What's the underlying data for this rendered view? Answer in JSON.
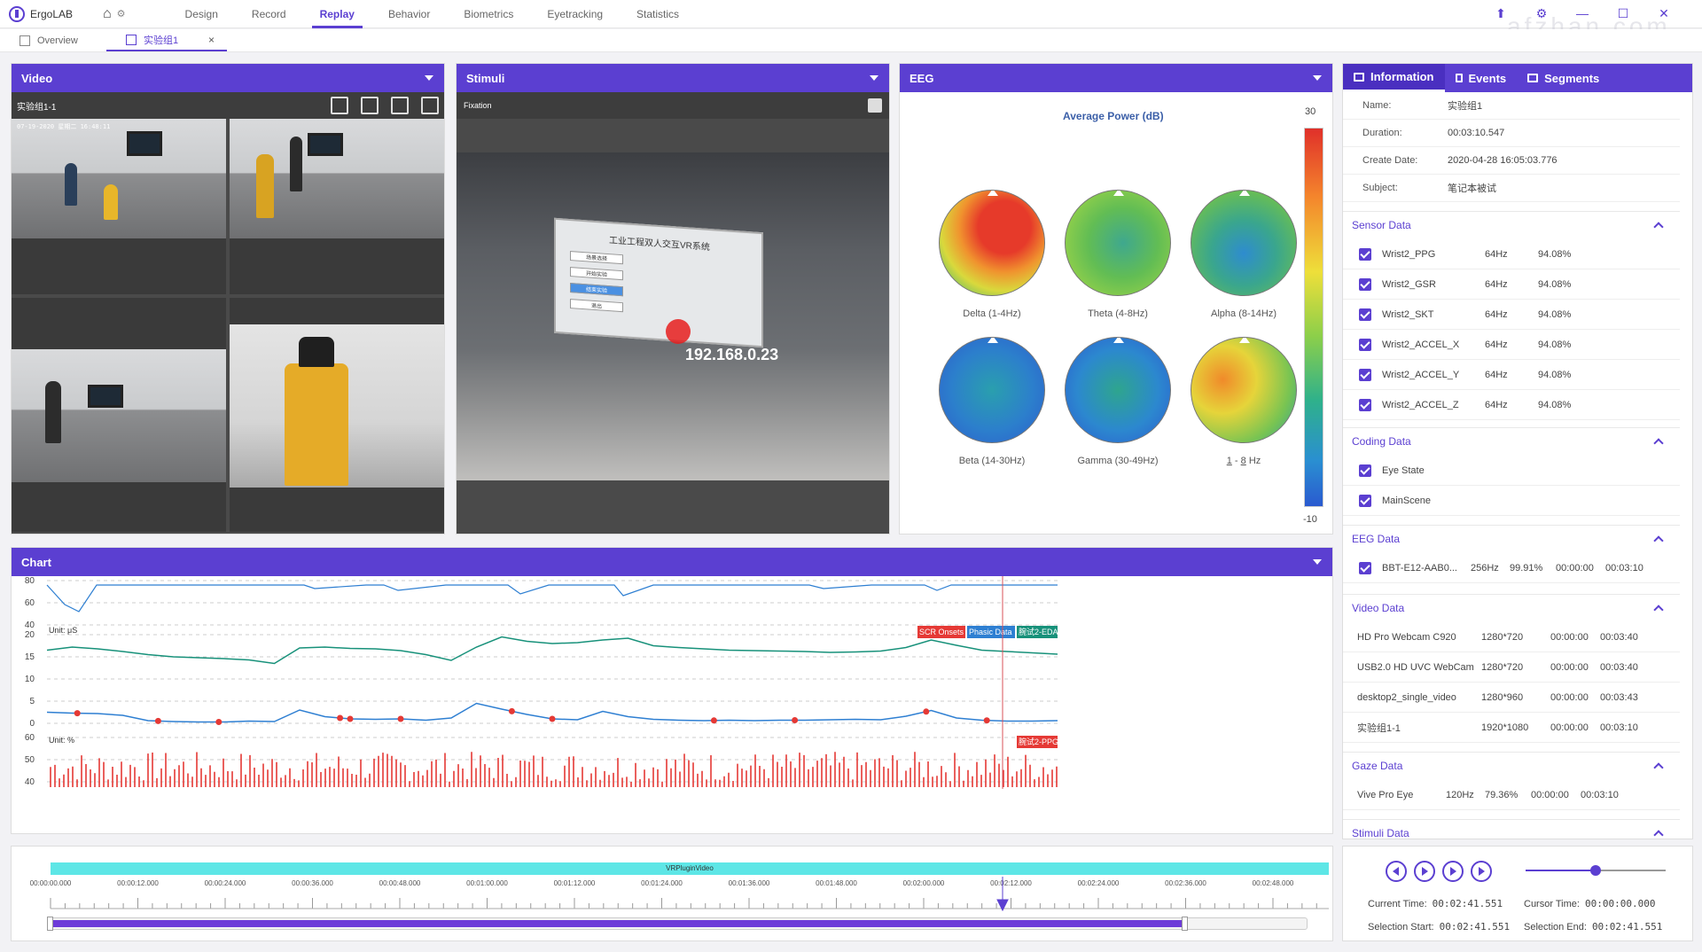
{
  "app": {
    "name": "ErgoLAB"
  },
  "nav": {
    "items": [
      "Design",
      "Record",
      "Replay",
      "Behavior",
      "Biometrics",
      "Eyetracking",
      "Statistics"
    ],
    "active": "Replay"
  },
  "doc_tabs": [
    {
      "label": "Overview"
    },
    {
      "label": "实验组1",
      "close": "×"
    }
  ],
  "video": {
    "title": "Video",
    "label": "实验组1-1",
    "timestamp": "07-19-2020 星期二 16:48:11"
  },
  "stimuli": {
    "title": "Stimuli",
    "label": "Fixation",
    "board_title": "工业工程双人交互VR系统",
    "ip": "192.168.0.23",
    "buttons": [
      "场景选择",
      "开始实验",
      "结束实验",
      "退出"
    ]
  },
  "eeg": {
    "title": "EEG",
    "chart_title": "Average Power (dB)",
    "bands": [
      "Delta (1-4Hz)",
      "Theta (4-8Hz)",
      "Alpha (8-14Hz)",
      "Beta (14-30Hz)",
      "Gamma (30-49Hz)"
    ],
    "custom_band": {
      "low": "1",
      "high": "8",
      "unit": "Hz"
    },
    "scale": {
      "max": "30",
      "min": "-10"
    },
    "colors": {
      "high": "#e0302a",
      "mid": "#eedf3a",
      "low": "#2a5ad0"
    }
  },
  "info": {
    "tabs": [
      "Information",
      "Events",
      "Segments"
    ],
    "fields": [
      {
        "key": "Name:",
        "value": "实验组1"
      },
      {
        "key": "Duration:",
        "value": "00:03:10.547"
      },
      {
        "key": "Create Date:",
        "value": "2020-04-28 16:05:03.776"
      },
      {
        "key": "Subject:",
        "value": "笔记本被试"
      }
    ],
    "sensor_title": "Sensor Data",
    "sensors": [
      {
        "name": "Wrist2_PPG",
        "rate": "64Hz",
        "pct": "94.08%"
      },
      {
        "name": "Wrist2_GSR",
        "rate": "64Hz",
        "pct": "94.08%"
      },
      {
        "name": "Wrist2_SKT",
        "rate": "64Hz",
        "pct": "94.08%"
      },
      {
        "name": "Wrist2_ACCEL_X",
        "rate": "64Hz",
        "pct": "94.08%"
      },
      {
        "name": "Wrist2_ACCEL_Y",
        "rate": "64Hz",
        "pct": "94.08%"
      },
      {
        "name": "Wrist2_ACCEL_Z",
        "rate": "64Hz",
        "pct": "94.08%"
      }
    ],
    "coding_title": "Coding Data",
    "coding": [
      "Eye State",
      "MainScene"
    ],
    "eeg_title": "EEG Data",
    "eeg_rows": [
      {
        "name": "BBT-E12-AAB0...",
        "rate": "256Hz",
        "pct": "99.91%",
        "start": "00:00:00",
        "end": "00:03:10"
      }
    ],
    "video_title": "Video Data",
    "videos": [
      {
        "name": "HD Pro Webcam C920",
        "res": "1280*720",
        "start": "00:00:00",
        "end": "00:03:40"
      },
      {
        "name": "USB2.0 HD UVC WebCam",
        "res": "1280*720",
        "start": "00:00:00",
        "end": "00:03:40"
      },
      {
        "name": "desktop2_single_video",
        "res": "1280*960",
        "start": "00:00:00",
        "end": "00:03:43"
      },
      {
        "name": "实验组1-1",
        "res": "1920*1080",
        "start": "00:00:00",
        "end": "00:03:10"
      }
    ],
    "gaze_title": "Gaze Data",
    "gaze": [
      {
        "name": "Vive Pro Eye",
        "rate": "120Hz",
        "pct": "79.36%",
        "start": "00:00:00",
        "end": "00:03:10"
      }
    ],
    "stimuli_title": "Stimuli Data"
  },
  "chart": {
    "title": "Chart",
    "legend": [
      "SCR Onsets",
      "Phasic Data",
      "腕试2-EDA"
    ],
    "ppg_legend": "腕试2-PPG",
    "unit_eda": "Unit: μS",
    "unit_ppg": "Unit: %",
    "colors": {
      "scr": "#e53935",
      "phasic": "#2e7fd2",
      "eda": "#17917a",
      "ppg": "#e53935",
      "top": "#2e7fd2"
    }
  },
  "chart_data": {
    "type": "line",
    "top_ticks": [
      "80",
      "60",
      "40"
    ],
    "eda_ticks": [
      "20",
      "15",
      "10",
      "5",
      "0"
    ],
    "ppg_ticks": [
      "60",
      "50",
      "40"
    ],
    "eda": {
      "ylim": [
        0,
        20
      ],
      "values": [
        16.5,
        17.2,
        16.8,
        16.2,
        15.5,
        15.0,
        14.8,
        14.6,
        14.3,
        13.5,
        17.0,
        17.2,
        16.9,
        16.8,
        16.4,
        15.5,
        14.2,
        17.2,
        19.5,
        18.5,
        18.0,
        18.2,
        18.8,
        19.2,
        17.5,
        17.1,
        16.8,
        16.5,
        16.4,
        16.3,
        16.2,
        16.0,
        16.1,
        16.3,
        17.1,
        18.8,
        17.6,
        16.5,
        16.2,
        15.9,
        15.6
      ]
    },
    "phasic": {
      "ylim": [
        0,
        20
      ],
      "values": [
        2.5,
        2.3,
        2.2,
        1.8,
        0.6,
        0.4,
        0.3,
        0.3,
        0.5,
        0.4,
        3.0,
        1.5,
        1.0,
        0.9,
        1.0,
        0.7,
        1.2,
        4.5,
        3.2,
        2.0,
        1.0,
        0.8,
        2.7,
        1.5,
        0.9,
        0.7,
        0.6,
        0.7,
        0.6,
        0.7,
        0.7,
        0.8,
        0.9,
        0.8,
        1.6,
        2.9,
        1.2,
        0.7,
        0.5,
        0.5,
        0.6
      ]
    },
    "scr_onsets_x": [
      0.03,
      0.11,
      0.17,
      0.29,
      0.3,
      0.35,
      0.46,
      0.5,
      0.66,
      0.74,
      0.87,
      0.93
    ],
    "cursor_time": "00:02:41.551"
  },
  "timeline": {
    "track": "VRPluginVideo",
    "ticks": [
      "00:00:00.000",
      "00:00:12.000",
      "00:00:24.000",
      "00:00:36.000",
      "00:00:48.000",
      "00:01:00.000",
      "00:01:12.000",
      "00:01:24.000",
      "00:01:36.000",
      "00:01:48.000",
      "00:02:00.000",
      "00:02:12.000",
      "00:02:24.000",
      "00:02:36.000",
      "00:02:48.000"
    ],
    "selection_fraction": 0.9
  },
  "player": {
    "current_label": "Current Time:",
    "current": "00:02:41.551",
    "cursor_label": "Cursor Time:",
    "cursor": "00:00:00.000",
    "sel_start_label": "Selection Start:",
    "sel_start": "00:02:41.551",
    "sel_end_label": "Selection End:",
    "sel_end": "00:02:41.551",
    "volume": 0.5
  }
}
